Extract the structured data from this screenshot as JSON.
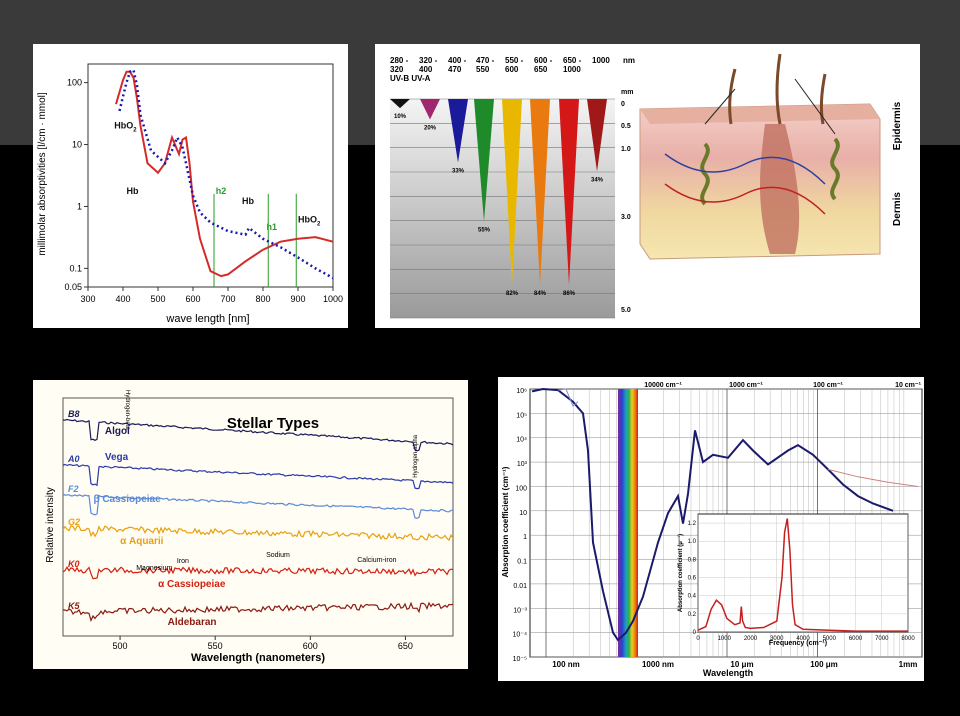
{
  "panel_hb": {
    "chart_data": {
      "type": "line",
      "xlabel": "wave length [nm]",
      "ylabel": "millimolar absorptivities [l/cm · mmol]",
      "x_ticks": [
        "300",
        "400",
        "500",
        "600",
        "700",
        "800",
        "900",
        "1000"
      ],
      "y_ticks": [
        "0.05",
        "0.1",
        "1",
        "10",
        "100"
      ],
      "xlim": [
        300,
        1000
      ],
      "ylim": [
        0.05,
        200
      ],
      "yscale": "log",
      "series": [
        {
          "name": "HbO2",
          "color": "#d42a2a",
          "style": "solid",
          "x": [
            380,
            400,
            410,
            420,
            430,
            440,
            450,
            470,
            500,
            520,
            540,
            560,
            570,
            580,
            590,
            600,
            620,
            650,
            680,
            700,
            750,
            800,
            850,
            900,
            950,
            1000
          ],
          "y": [
            45,
            110,
            150,
            150,
            120,
            55,
            20,
            5,
            3.5,
            5,
            13,
            7,
            12,
            13,
            5,
            1.2,
            0.3,
            0.09,
            0.075,
            0.08,
            0.13,
            0.2,
            0.27,
            0.3,
            0.32,
            0.27
          ]
        },
        {
          "name": "Hb",
          "color": "#1a1ab0",
          "style": "dotted",
          "x": [
            390,
            400,
            410,
            420,
            430,
            440,
            450,
            480,
            520,
            540,
            555,
            570,
            580,
            600,
            620,
            650,
            700,
            750,
            760,
            800,
            850,
            900,
            950,
            1000
          ],
          "y": [
            35,
            60,
            100,
            150,
            160,
            90,
            30,
            8,
            5,
            8,
            13,
            9,
            5,
            1.5,
            0.8,
            0.55,
            0.4,
            0.35,
            0.45,
            0.3,
            0.22,
            0.15,
            0.1,
            0.07
          ]
        }
      ],
      "annotations": [
        {
          "text": "HbO",
          "sub": "2",
          "x": 375,
          "y": 18
        },
        {
          "text": "Hb",
          "x": 410,
          "y": 1.6
        },
        {
          "text": "h2",
          "x": 665,
          "y": 1.6
        },
        {
          "text": "Hb",
          "x": 740,
          "y": 1.1
        },
        {
          "text": "h1",
          "x": 810,
          "y": 0.42
        },
        {
          "text": "HbO",
          "sub": "2",
          "x": 900,
          "y": 0.55
        }
      ],
      "vlines": [
        660,
        815,
        895
      ]
    }
  },
  "panel_skin": {
    "header_row1": [
      "280 -",
      "320 -",
      "400 -",
      "470 -",
      "550 -",
      "600 -",
      "650 -",
      "1000"
    ],
    "header_row2": [
      "320",
      "400",
      "470",
      "550",
      "600",
      "650",
      "1000"
    ],
    "unit_nm": "nm",
    "uv_labels": "UV-B  UV-A",
    "depth_unit": "mm",
    "depth_ticks": [
      "0",
      "0.5",
      "1.0",
      "3.0",
      "5.0"
    ],
    "chart_data": {
      "type": "bar",
      "bands": [
        "280-320",
        "320-400",
        "400-470",
        "470-550",
        "550-600",
        "600-650",
        "650-1000",
        "1000"
      ],
      "percent_labels": [
        "10%",
        "20%",
        "33%",
        "55%",
        "82%",
        "84%",
        "86%",
        "34%"
      ],
      "depth_mm": [
        0.2,
        0.45,
        1.4,
        2.7,
        4.1,
        4.1,
        4.1,
        1.6
      ],
      "colors": [
        "#111111",
        "#a0266e",
        "#1a1a9a",
        "#1f8a2a",
        "#e8b800",
        "#e87a10",
        "#d41818",
        "#a01818"
      ]
    },
    "layer_labels": [
      "Epidermis",
      "Dermis"
    ]
  },
  "panel_stellar": {
    "title": "Stellar Types",
    "xlabel": "Wavelength (nanometers)",
    "ylabel": "Relative intensity",
    "top_labels": [
      "Hydrogen-beta",
      "Hydrogen-alpha"
    ],
    "chart_data": {
      "type": "line",
      "x_ticks": [
        "500",
        "550",
        "600",
        "650"
      ],
      "xlim": [
        470,
        675
      ],
      "series": [
        {
          "class": "B8",
          "name": "Algol",
          "color": "#1a1a5a"
        },
        {
          "class": "A0",
          "name": "Vega",
          "color": "#2a3aa8"
        },
        {
          "class": "F2",
          "name": "β Cassiopeiae",
          "color": "#5a8ad8"
        },
        {
          "class": "G2",
          "name": "α Aquarii",
          "color": "#e8a010"
        },
        {
          "class": "K0",
          "name": "α Cassiopeiae",
          "color": "#d42010"
        },
        {
          "class": "K5",
          "name": "Aldebaran",
          "color": "#8a1a10"
        }
      ],
      "annotations": [
        "Magnesium",
        "Iron",
        "Sodium",
        "Calcium-iron"
      ]
    }
  },
  "panel_absorption": {
    "chart_data": {
      "type": "line",
      "ylabel": "Absorption coefficient (cm⁻¹)",
      "xlabel": "Wavelength",
      "x_ticks": [
        "100 nm",
        "1000 nm",
        "10 μm",
        "100 μm",
        "1mm"
      ],
      "top_ticks": [
        "10000 cm⁻¹",
        "1000 cm⁻¹",
        "100 cm⁻¹",
        "10 cm⁻¹"
      ],
      "y_ticks": [
        "10⁶",
        "10⁵",
        "10⁴",
        "10³",
        "100",
        "10",
        "1",
        "0.1",
        "0.01",
        "10⁻³",
        "10⁻⁴",
        "10⁻⁵"
      ],
      "yscale": "log",
      "xscale": "log",
      "main_series": {
        "name": "",
        "color": "#1a1a6a"
      },
      "inset": {
        "xlabel": "Frequency (cm⁻¹)",
        "ylabel": "Absorption coefficient (μ⁻¹)",
        "x_ticks": [
          "0",
          "1000",
          "2000",
          "3000",
          "4000",
          "5000",
          "6000",
          "7000",
          "8000"
        ],
        "y_ticks": [
          "0",
          "0.2",
          "0.4",
          "0.6",
          "0.8",
          "1.0",
          "1.2"
        ],
        "x": [
          0,
          300,
          500,
          700,
          900,
          1100,
          1400,
          1600,
          1650,
          1700,
          1800,
          2000,
          2500,
          3000,
          3200,
          3300,
          3400,
          3500,
          3600,
          3700,
          4000,
          5000,
          6000,
          7000,
          8000
        ],
        "y": [
          0.02,
          0.06,
          0.25,
          0.35,
          0.3,
          0.15,
          0.08,
          0.1,
          0.28,
          0.12,
          0.05,
          0.04,
          0.05,
          0.12,
          0.6,
          1.1,
          1.25,
          0.9,
          0.3,
          0.08,
          0.03,
          0.02,
          0.01,
          0.01,
          0.01
        ],
        "color": "#c42020"
      }
    }
  }
}
